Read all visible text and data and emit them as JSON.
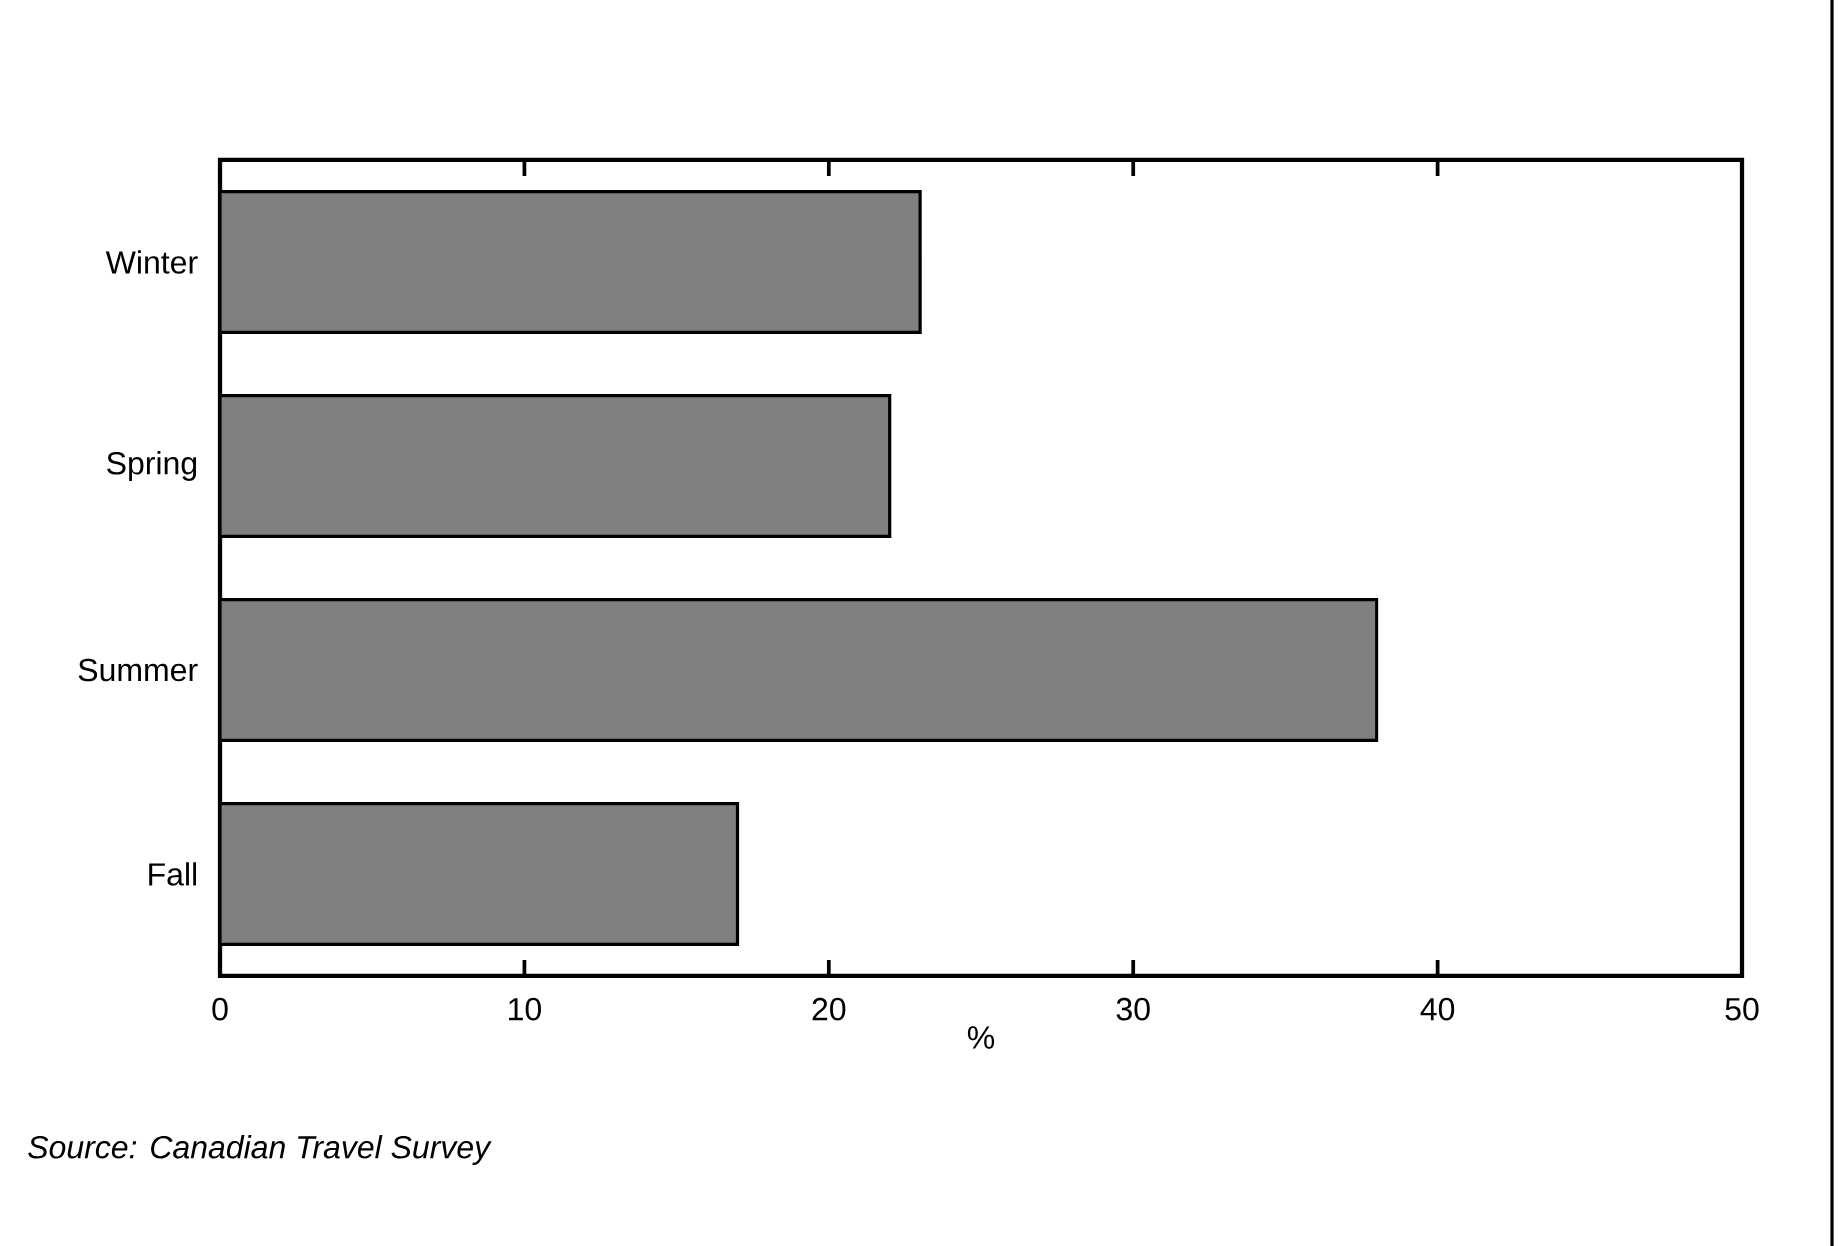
{
  "chart_data": {
    "type": "bar",
    "orientation": "horizontal",
    "categories": [
      "Winter",
      "Spring",
      "Summer",
      "Fall"
    ],
    "values": [
      23,
      22,
      38,
      17
    ],
    "color": "#808080",
    "xlim": [
      0,
      50
    ],
    "xticks": [
      0,
      10,
      20,
      30,
      40,
      50
    ],
    "xlabel": "%",
    "grid": false,
    "annotations": [
      "Source:  Canadian Travel Survey"
    ]
  }
}
